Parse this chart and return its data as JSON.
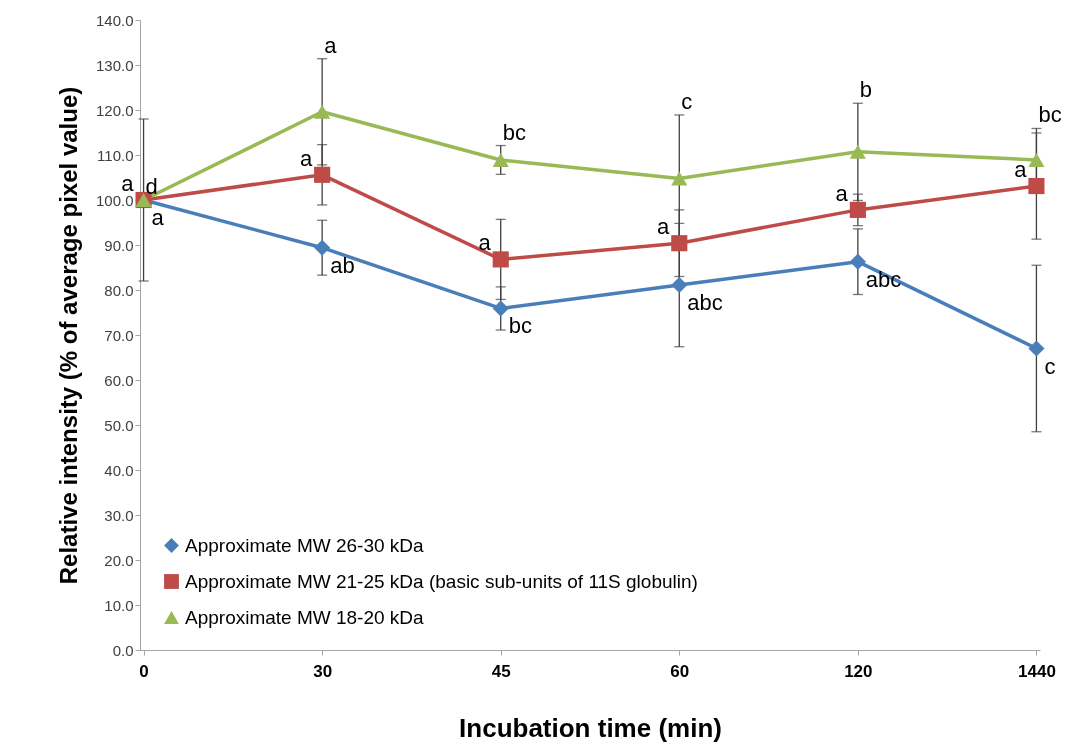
{
  "chart_data": {
    "type": "line",
    "xlabel": "Incubation time (min)",
    "ylabel": "Relative intensity (% of average pixel value)",
    "categories": [
      "0",
      "30",
      "45",
      "60",
      "120",
      "1440"
    ],
    "series": [
      {
        "name": "Approximate MW 26-30 kDa",
        "color": "#4a7ebb",
        "marker": "diamond",
        "values": [
          100,
          89.4,
          75.9,
          81.1,
          86.3,
          67.0
        ],
        "errors": [
          18,
          6.1,
          4.8,
          13.7,
          7.3,
          18.5
        ]
      },
      {
        "name": "Approximate MW 21-25 kDa (basic sub-units of 11S globulin)",
        "color": "#be4b48",
        "marker": "square",
        "values": [
          100,
          105.6,
          86.8,
          90.4,
          97.8,
          103.1
        ],
        "errors": [
          null,
          6.7,
          8.9,
          7.4,
          3.5,
          11.8
        ]
      },
      {
        "name": "Approximate MW 18-20 kDa",
        "color": "#98b954",
        "marker": "triangle",
        "values": [
          100,
          119.6,
          108.9,
          104.8,
          110.7,
          108.9
        ],
        "errors": [
          null,
          11.8,
          3.2,
          14.1,
          10.8,
          7
        ]
      }
    ],
    "ylim": [
      0,
      140
    ],
    "yticks": [
      {
        "value": 0,
        "label": "0.0"
      },
      {
        "value": 10,
        "label": "10.0"
      },
      {
        "value": 20,
        "label": "20.0"
      },
      {
        "value": 30,
        "label": "30.0"
      },
      {
        "value": 40,
        "label": "40.0"
      },
      {
        "value": 50,
        "label": "50.0"
      },
      {
        "value": 60,
        "label": "60.0"
      },
      {
        "value": 70,
        "label": "70.0"
      },
      {
        "value": 80,
        "label": "80.0"
      },
      {
        "value": 90,
        "label": "90.0"
      },
      {
        "value": 100,
        "label": "100.0"
      },
      {
        "value": 110,
        "label": "110.0"
      },
      {
        "value": 120,
        "label": "120.0"
      },
      {
        "value": 130,
        "label": "130.0"
      },
      {
        "value": 140,
        "label": "140.0"
      }
    ],
    "grid": false,
    "legend": "bottom left",
    "line_style": "solid",
    "annotations": [
      {
        "text": "d",
        "x": "0",
        "y": 100
      },
      {
        "text": "a",
        "x": "0",
        "y": 100
      },
      {
        "text": "a",
        "x": "0",
        "y": 100
      },
      {
        "text": "a",
        "x": "30",
        "y": 119.6
      },
      {
        "text": "a",
        "x": "30",
        "y": 105.6
      },
      {
        "text": "ab",
        "x": "30",
        "y": 89.4
      },
      {
        "text": "bc",
        "x": "45",
        "y": 108.9
      },
      {
        "text": "a",
        "x": "45",
        "y": 86.8
      },
      {
        "text": "bc",
        "x": "45",
        "y": 75.9
      },
      {
        "text": "c",
        "x": "60",
        "y": 104.8
      },
      {
        "text": "a",
        "x": "60",
        "y": 90.4
      },
      {
        "text": "abc",
        "x": "60",
        "y": 81.1
      },
      {
        "text": "b",
        "x": "120",
        "y": 110.7
      },
      {
        "text": "a",
        "x": "120",
        "y": 97.8
      },
      {
        "text": "abc",
        "x": "120",
        "y": 86.3
      },
      {
        "text": "bc",
        "x": "1440",
        "y": 108.9
      },
      {
        "text": "a",
        "x": "1440",
        "y": 103.1
      },
      {
        "text": "c",
        "x": "1440",
        "y": 67.0
      }
    ]
  }
}
